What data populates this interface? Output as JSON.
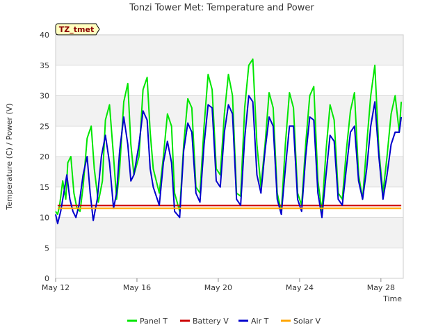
{
  "chart_data": {
    "type": "line",
    "title": "Tonzi Tower Met: Temperature and Power",
    "xlabel": "Time",
    "ylabel": "Temperature (C) / Power (V)",
    "site_label": "TZ_tmet",
    "xlim": [
      12,
      29.1
    ],
    "ylim": [
      0,
      40
    ],
    "yticks": [
      0,
      5,
      10,
      15,
      20,
      25,
      30,
      35,
      40
    ],
    "xticks": [
      {
        "value": 12,
        "label": "May 12"
      },
      {
        "value": 16,
        "label": "May 16"
      },
      {
        "value": 20,
        "label": "May 20"
      },
      {
        "value": 24,
        "label": "May 24"
      },
      {
        "value": 28,
        "label": "May 28"
      }
    ],
    "legend": [
      "Panel T",
      "Battery V",
      "Air T",
      "Solar V"
    ],
    "legend_position": "bottom",
    "series": [
      {
        "name": "Panel T",
        "color": "#00e600",
        "x": [
          12.0,
          12.1,
          12.2,
          12.35,
          12.5,
          12.6,
          12.75,
          12.9,
          13.05,
          13.2,
          13.35,
          13.55,
          13.75,
          13.9,
          14.1,
          14.3,
          14.45,
          14.65,
          14.85,
          15.0,
          15.15,
          15.35,
          15.55,
          15.7,
          15.85,
          16.1,
          16.3,
          16.5,
          16.65,
          16.8,
          17.1,
          17.3,
          17.5,
          17.7,
          17.85,
          18.1,
          18.3,
          18.5,
          18.7,
          18.9,
          19.1,
          19.3,
          19.5,
          19.7,
          19.9,
          20.1,
          20.3,
          20.5,
          20.7,
          20.9,
          21.1,
          21.3,
          21.5,
          21.7,
          21.9,
          22.1,
          22.3,
          22.5,
          22.7,
          22.9,
          23.1,
          23.3,
          23.5,
          23.7,
          23.9,
          24.1,
          24.3,
          24.5,
          24.7,
          24.9,
          25.1,
          25.3,
          25.5,
          25.7,
          25.9,
          26.1,
          26.3,
          26.5,
          26.7,
          26.9,
          27.1,
          27.3,
          27.5,
          27.7,
          27.9,
          28.1,
          28.3,
          28.5,
          28.7,
          28.9,
          29.0
        ],
        "y": [
          11.0,
          10.5,
          12.0,
          16.0,
          13.0,
          19.0,
          20.0,
          14.0,
          11.5,
          11.0,
          15.0,
          23.0,
          25.0,
          18.0,
          12.5,
          16.0,
          26.0,
          28.5,
          20.0,
          13.0,
          18.0,
          29.0,
          32.0,
          22.0,
          17.0,
          20.0,
          31.0,
          33.0,
          24.0,
          18.0,
          14.0,
          20.0,
          27.0,
          25.0,
          14.0,
          11.0,
          22.0,
          29.5,
          28.0,
          15.0,
          14.0,
          25.0,
          33.5,
          31.0,
          18.0,
          17.0,
          27.0,
          33.5,
          30.0,
          14.0,
          13.5,
          28.0,
          35.0,
          36.0,
          22.0,
          15.0,
          22.0,
          30.5,
          28.0,
          14.0,
          11.0,
          22.0,
          30.5,
          28.0,
          14.0,
          12.0,
          22.0,
          30.0,
          31.5,
          16.0,
          11.0,
          21.0,
          28.5,
          26.0,
          14.0,
          13.0,
          21.0,
          27.5,
          30.5,
          17.0,
          13.0,
          22.0,
          30.0,
          35.0,
          21.0,
          14.0,
          20.0,
          27.0,
          30.0,
          24.0,
          29.0
        ]
      },
      {
        "name": "Battery V",
        "color": "#cc0000",
        "x": [
          12.1,
          29.0
        ],
        "y": [
          11.95,
          11.95
        ]
      },
      {
        "name": "Air T",
        "color": "#0000cc",
        "x": [
          12.0,
          12.1,
          12.25,
          12.4,
          12.55,
          12.7,
          12.85,
          13.0,
          13.15,
          13.35,
          13.55,
          13.7,
          13.85,
          14.05,
          14.25,
          14.45,
          14.65,
          14.85,
          15.0,
          15.15,
          15.35,
          15.55,
          15.7,
          15.85,
          16.1,
          16.3,
          16.5,
          16.65,
          16.8,
          17.1,
          17.3,
          17.5,
          17.7,
          17.85,
          18.1,
          18.3,
          18.5,
          18.7,
          18.9,
          19.1,
          19.3,
          19.5,
          19.7,
          19.9,
          20.1,
          20.3,
          20.5,
          20.7,
          20.9,
          21.1,
          21.3,
          21.5,
          21.7,
          21.9,
          22.1,
          22.3,
          22.5,
          22.7,
          22.9,
          23.1,
          23.3,
          23.5,
          23.7,
          23.9,
          24.1,
          24.3,
          24.5,
          24.7,
          24.9,
          25.1,
          25.3,
          25.5,
          25.7,
          25.9,
          26.1,
          26.3,
          26.5,
          26.7,
          26.9,
          27.1,
          27.3,
          27.5,
          27.7,
          27.9,
          28.1,
          28.3,
          28.5,
          28.7,
          28.9,
          29.0
        ],
        "y": [
          10.5,
          9.0,
          11.0,
          14.0,
          17.0,
          13.0,
          11.0,
          10.0,
          12.0,
          17.0,
          20.0,
          14.0,
          9.5,
          13.0,
          20.0,
          23.5,
          19.0,
          11.5,
          14.0,
          21.0,
          26.5,
          22.0,
          16.0,
          17.0,
          22.0,
          27.5,
          26.0,
          18.0,
          15.0,
          12.0,
          19.0,
          22.5,
          19.0,
          11.0,
          10.0,
          21.0,
          25.5,
          24.0,
          14.0,
          12.5,
          22.0,
          28.5,
          28.0,
          16.0,
          15.0,
          24.0,
          28.5,
          27.0,
          13.0,
          12.0,
          23.0,
          30.0,
          29.0,
          17.0,
          14.0,
          21.0,
          26.5,
          25.0,
          13.0,
          10.5,
          18.0,
          25.0,
          25.0,
          13.0,
          11.0,
          20.0,
          26.5,
          26.0,
          14.0,
          10.0,
          17.0,
          23.5,
          22.5,
          13.0,
          12.0,
          18.0,
          24.0,
          25.0,
          16.0,
          13.0,
          18.0,
          25.0,
          29.0,
          20.0,
          13.0,
          17.0,
          22.0,
          24.0,
          24.0,
          26.5
        ]
      },
      {
        "name": "Solar V",
        "color": "#ffa500",
        "x": [
          12.1,
          29.0
        ],
        "y": [
          11.5,
          11.5
        ]
      }
    ]
  }
}
